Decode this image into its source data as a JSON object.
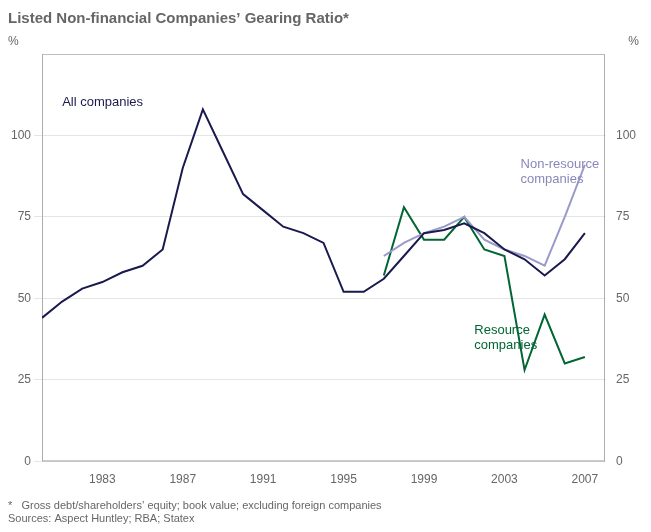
{
  "chart_data": {
    "type": "line",
    "title": "Listed Non-financial Companies’ Gearing Ratio*",
    "ylabel": "%",
    "y2label": "%",
    "footnote": "*   Gross debt/shareholders’ equity; book value; excluding foreign companies\nSources: Aspect Huntley; RBA; Statex",
    "xlim": [
      1980,
      2008
    ],
    "xticks": [
      1983,
      1987,
      1991,
      1995,
      1999,
      2003,
      2007
    ],
    "ylim": [
      0,
      125
    ],
    "yticks": [
      0,
      25,
      50,
      75,
      100
    ],
    "y2lim": [
      0,
      125
    ],
    "y2ticks": [
      0,
      25,
      50,
      75,
      100
    ],
    "grid": "y",
    "legend": "none",
    "series": [
      {
        "name": "All companies",
        "color": "#1a1a4e",
        "x": [
          1980,
          1981,
          1982,
          1983,
          1984,
          1985,
          1986,
          1987,
          1988,
          1989,
          1990,
          1991,
          1992,
          1993,
          1994,
          1995,
          1996,
          1997,
          1998,
          1999,
          2000,
          2001,
          2002,
          2003,
          2004,
          2005,
          2006,
          2007
        ],
        "values": [
          44,
          49,
          53,
          55,
          58,
          60,
          65,
          90,
          108,
          95,
          82,
          77,
          72,
          70,
          67,
          52,
          52,
          56,
          63,
          70,
          71,
          73,
          70,
          65,
          62,
          57,
          62,
          70
        ]
      },
      {
        "name": "Non-resource\ncompanies",
        "color": "#9999cc",
        "x": [
          1997,
          1998,
          1999,
          2000,
          2001,
          2002,
          2003,
          2004,
          2005,
          2006,
          2007
        ],
        "values": [
          63,
          67,
          70,
          72,
          75,
          68,
          65,
          63,
          60,
          75,
          91
        ]
      },
      {
        "name": "Resource\ncompanies",
        "color": "#006633",
        "x": [
          1997,
          1998,
          1999,
          2000,
          2001,
          2002,
          2003,
          2004,
          2005,
          2006,
          2007
        ],
        "values": [
          57,
          78,
          68,
          68,
          75,
          65,
          63,
          28,
          45,
          30,
          32
        ]
      }
    ],
    "annotations": [
      {
        "text": "All companies",
        "x": 1981.0,
        "y": 112,
        "color": "#1a1a4e"
      },
      {
        "text": "Non-resource\ncompanies",
        "x": 2003.8,
        "y": 93,
        "color": "#8888bb"
      },
      {
        "text": "Resource\ncompanies",
        "x": 2001.5,
        "y": 42,
        "color": "#006633"
      }
    ]
  }
}
